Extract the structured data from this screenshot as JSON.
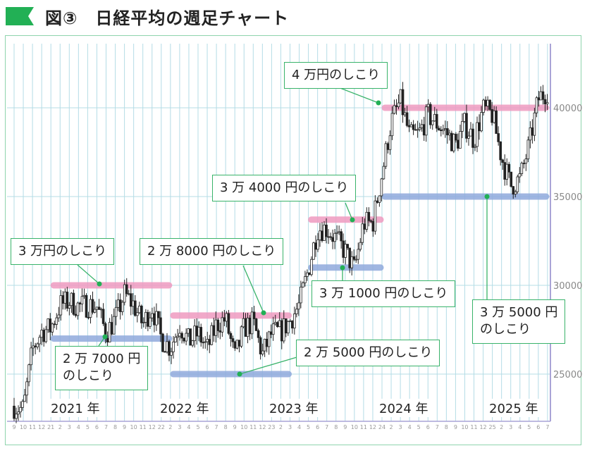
{
  "header": {
    "title": "図③　日経平均の週足チャート"
  },
  "chart_data": {
    "type": "candlestick",
    "title": "日経平均の週足チャート",
    "period": "weekly",
    "x_month_ticks": [
      "9",
      "10",
      "11",
      "12",
      "21",
      "2",
      "3",
      "4",
      "5",
      "6",
      "7",
      "8",
      "9",
      "10",
      "11",
      "12",
      "22",
      "2",
      "3",
      "4",
      "5",
      "6",
      "7",
      "8",
      "9",
      "10",
      "11",
      "12",
      "23",
      "2",
      "3",
      "4",
      "5",
      "6",
      "7",
      "8",
      "9",
      "10",
      "11",
      "12",
      "24",
      "2",
      "3",
      "4",
      "5",
      "6",
      "7",
      "8",
      "9",
      "10",
      "11",
      "12",
      "25",
      "2",
      "3",
      "4",
      "5",
      "6",
      "7"
    ],
    "year_labels": [
      "2021 年",
      "2022 年",
      "2023 年",
      "2024 年",
      "2025 年"
    ],
    "y_ticks": [
      25000,
      30000,
      35000,
      40000
    ],
    "y_tick_labels": [
      "25000",
      "30000",
      "35000",
      "40000"
    ],
    "ylim": [
      22500,
      42500
    ],
    "monthly_approx_close": [
      23200,
      23000,
      26400,
      27400,
      27600,
      28900,
      29100,
      28800,
      28900,
      28800,
      27300,
      28100,
      29500,
      28900,
      27800,
      28800,
      27000,
      26500,
      27800,
      26800,
      27300,
      26400,
      27800,
      28100,
      25900,
      27600,
      27900,
      26100,
      27300,
      27400,
      28000,
      28900,
      30900,
      33200,
      33200,
      32600,
      31900,
      30900,
      33500,
      33500,
      36300,
      39200,
      40400,
      38400,
      38500,
      39600,
      39100,
      38600,
      37900,
      39100,
      38200,
      39900,
      39600,
      37200,
      35600,
      36000,
      37900,
      40500,
      41000
    ],
    "resistance_support_lines": [
      {
        "label": "4 万円のしこり",
        "value": 40000,
        "kind": "resistance",
        "from_month": 40,
        "to_month": 58
      },
      {
        "label": "3 万 5000 円のしこり",
        "value": 35000,
        "kind": "support",
        "from_month": 40,
        "to_month": 58
      },
      {
        "label": "3 万 4000 円のしこり",
        "value": 33700,
        "kind": "resistance",
        "from_month": 32,
        "to_month": 40
      },
      {
        "label": "3 万 1000 円のしこり",
        "value": 31000,
        "kind": "support",
        "from_month": 32,
        "to_month": 40
      },
      {
        "label": "3 万円のしこり",
        "value": 30000,
        "kind": "resistance",
        "from_month": 4,
        "to_month": 17
      },
      {
        "label": "2 万 8000 円のしこり",
        "value": 28300,
        "kind": "resistance",
        "from_month": 17,
        "to_month": 30
      },
      {
        "label": "2 万 7000 円のしこり",
        "value": 27000,
        "kind": "support",
        "from_month": 4,
        "to_month": 17
      },
      {
        "label": "2 万 5000 円のしこり",
        "value": 25000,
        "kind": "support",
        "from_month": 17,
        "to_month": 30
      }
    ]
  },
  "annotations": {
    "a40000": "4 万円のしこり",
    "a34000": "3 万 4000 円のしこり",
    "a30000": "3 万円のしこり",
    "a28000": "2 万 8000 円のしこり",
    "a31000": "3 万 1000 円のしこり",
    "a27000_1": "2 万 7000 円",
    "a27000_2": "のしこり",
    "a25000": "2 万 5000 円のしこり",
    "a35000_1": "3 万 5000 円",
    "a35000_2": "のしこり"
  },
  "colors": {
    "accent": "#22b055",
    "resistance": "#ee9ac0",
    "support": "#8fa9dc",
    "grid": "#b4dce6",
    "candle": "#222222"
  }
}
